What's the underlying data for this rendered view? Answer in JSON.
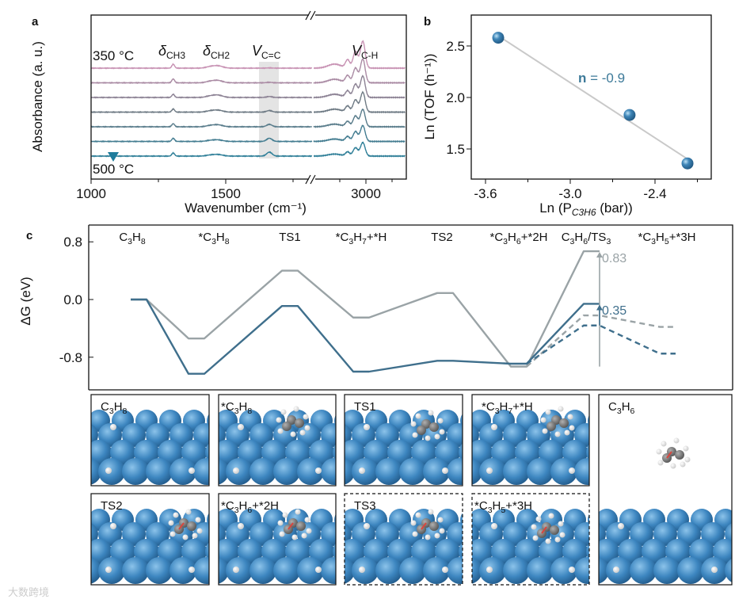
{
  "panel_letters": {
    "a": "a",
    "b": "b",
    "c": "c"
  },
  "watermark": "大数跨境",
  "chart_data": [
    {
      "id": "a",
      "type": "line",
      "title": "",
      "xlabel": "Wavenumber (cm⁻¹)",
      "ylabel": "Absorbance (a. u.)",
      "x_ticks": [
        "1000",
        "1500",
        "3000"
      ],
      "x_tick_values": [
        1000,
        1500,
        3000
      ],
      "x_ranges": [
        [
          1000,
          1820
        ],
        [
          2800,
          3150
        ]
      ],
      "axis_break": true,
      "temperature_labels": {
        "start": "350 °C",
        "end": "500 °C"
      },
      "peak_labels": [
        {
          "symbol": "δ",
          "sub": "CH3",
          "position": 1305
        },
        {
          "symbol": "δ",
          "sub": "CH2",
          "position": 1470
        },
        {
          "symbol": "V",
          "sub": "C=C",
          "position": 1660
        },
        {
          "symbol": "V",
          "sub": "C-H",
          "position": 2985
        }
      ],
      "highlight_band": [
        1640,
        1690
      ],
      "traces": [
        {
          "ch3": 5,
          "ch2": 3,
          "cc": 0.3,
          "ch": 34
        },
        {
          "ch3": 5,
          "ch2": 3,
          "cc": 0.6,
          "ch": 30
        },
        {
          "ch3": 4,
          "ch2": 3,
          "cc": 1.2,
          "ch": 27
        },
        {
          "ch3": 4,
          "ch2": 2.5,
          "cc": 2,
          "ch": 25
        },
        {
          "ch3": 4,
          "ch2": 2.5,
          "cc": 3,
          "ch": 22
        },
        {
          "ch3": 4,
          "ch2": 2,
          "cc": 4,
          "ch": 20
        },
        {
          "ch3": 4,
          "ch2": 2,
          "cc": 5,
          "ch": 17
        }
      ]
    },
    {
      "id": "b",
      "type": "scatter",
      "xlabel_main": "Ln (P",
      "xlabel_sub": "C3H6",
      "xlabel_end": " (bar))",
      "ylabel": "Ln (TOF (h⁻¹))",
      "x_ticks": [
        "-3.6",
        "-3.0",
        "-2.4"
      ],
      "x_tick_values": [
        -3.6,
        -3.0,
        -2.4
      ],
      "y_ticks": [
        "1.5",
        "2.0",
        "2.5"
      ],
      "y_tick_values": [
        1.5,
        2.0,
        2.5
      ],
      "xlim": [
        -3.75,
        -1.9
      ],
      "ylim": [
        1.2,
        2.78
      ],
      "points": [
        {
          "x": -3.51,
          "y": 2.58
        },
        {
          "x": -2.58,
          "y": 1.83
        },
        {
          "x": -2.17,
          "y": 1.36
        }
      ],
      "fit_label_bold": "n",
      "fit_label": " = -0.9",
      "colors": {
        "point": "#2f6e9e",
        "fit": "#c9c9c9",
        "label": "#3d7a99"
      }
    },
    {
      "id": "c",
      "type": "line",
      "ylabel": "ΔG (eV)",
      "y_ticks": [
        "0.8",
        "0.0",
        "-0.8"
      ],
      "y_tick_values": [
        0.8,
        0.0,
        -0.8
      ],
      "ylim": [
        -1.25,
        1.05
      ],
      "states": [
        "C3H8",
        "*C3H8",
        "TS1",
        "*C3H7+*H",
        "TS2",
        "*C3H6+*2H",
        "C3H6/TS3",
        "*C3H5+*3H"
      ],
      "series": [
        {
          "name": "gray",
          "color": "#9aa3a6",
          "values": [
            0,
            -0.54,
            0.4,
            -0.25,
            0.09,
            -0.93,
            0.67,
            null
          ],
          "dashed_branch": {
            "C3H6": -0.22,
            "*C3H5+*3H": -0.38
          }
        },
        {
          "name": "blue",
          "color": "#3f6f8c",
          "values": [
            0,
            -1.03,
            -0.09,
            -1.0,
            -0.85,
            -0.89,
            -0.06,
            null
          ],
          "dashed_branch": {
            "C3H6": -0.36,
            "*C3H5+*3H": -0.75
          }
        }
      ],
      "annotations": [
        {
          "text": "0.83",
          "color": "#9aa3a6"
        },
        {
          "text": "0.35",
          "color": "#3f6f8c"
        }
      ]
    }
  ],
  "structure_panels": [
    {
      "label": "C3H8",
      "dashed": false
    },
    {
      "label": "*C3H8",
      "dashed": false
    },
    {
      "label": "TS1",
      "dashed": false
    },
    {
      "label": "*C3H7+*H",
      "dashed": false
    },
    {
      "label": "TS2",
      "dashed": false
    },
    {
      "label": "*C3H6+*2H",
      "dashed": false
    },
    {
      "label": "TS3",
      "dashed": true
    },
    {
      "label": "*C3H5+*3H",
      "dashed": true
    },
    {
      "label": "C3H6",
      "dashed": false
    }
  ]
}
